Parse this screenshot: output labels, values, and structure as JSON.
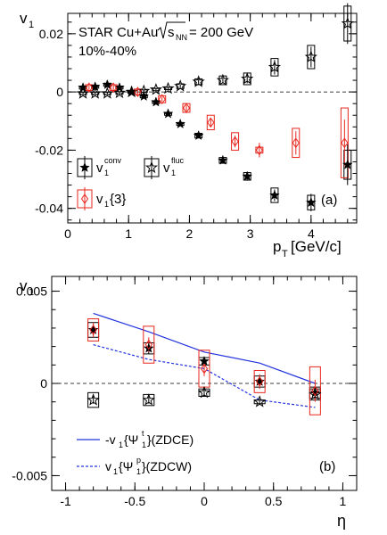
{
  "chart_data": [
    {
      "type": "scatter",
      "panel_label": "(a)",
      "annotations": [
        "STAR Cu+Au",
        "= 200 GeV",
        "10%-40%"
      ],
      "sqrt_label": "s",
      "sqrt_sub": "NN",
      "ylabel": "v",
      "ylabel_sub": "1",
      "xlabel": "p",
      "xlabel_sub": "T",
      "xlabel_unit": "[GeV/c]",
      "xlim": [
        0,
        4.75
      ],
      "ylim": [
        -0.045,
        0.027
      ],
      "xticks": [
        "0",
        "1",
        "2",
        "3",
        "4"
      ],
      "xtick_values": [
        0,
        1,
        2,
        3,
        4
      ],
      "yticks": [
        "-0.04",
        "-0.02",
        "0",
        "0.02"
      ],
      "ytick_values": [
        -0.04,
        -0.02,
        0,
        0.02
      ],
      "reference_line_y": 0,
      "legend": [
        {
          "key": "conv",
          "text": "v",
          "sub": "1",
          "sup": "conv",
          "marker": "star-filled",
          "color": "#000000"
        },
        {
          "key": "fluc",
          "text": "v",
          "sub": "1",
          "sup": "fluc",
          "marker": "star-open",
          "color": "#000000"
        },
        {
          "key": "v13",
          "text": "v",
          "sub": "1",
          "suffix": "{3}",
          "marker": "diamond-open",
          "color": "#e8251c"
        }
      ],
      "series": [
        {
          "key": "conv",
          "marker": "star-filled",
          "color": "#000000",
          "x": [
            0.25,
            0.45,
            0.65,
            0.85,
            1.05,
            1.25,
            1.45,
            1.65,
            1.85,
            2.15,
            2.55,
            2.95,
            3.4,
            4.0,
            4.6
          ],
          "y": [
            0.0015,
            0.0018,
            0.0025,
            0.0015,
            0.0,
            -0.0015,
            -0.0035,
            -0.0075,
            -0.011,
            -0.015,
            -0.0235,
            -0.029,
            -0.0355,
            -0.038,
            -0.025
          ],
          "err": [
            0.0005,
            0.0005,
            0.0005,
            0.0005,
            0.0005,
            0.0005,
            0.0005,
            0.0005,
            0.0005,
            0.0008,
            0.001,
            0.0015,
            0.002,
            0.003,
            0.007
          ],
          "sys": [
            0.0005,
            0.0005,
            0.0005,
            0.0005,
            0.0005,
            0.0005,
            0.0005,
            0.0005,
            0.0005,
            0.0008,
            0.001,
            0.0013,
            0.0025,
            0.0025,
            0.005
          ]
        },
        {
          "key": "fluc",
          "marker": "star-open",
          "color": "#000000",
          "x": [
            0.25,
            0.45,
            0.65,
            0.85,
            1.05,
            1.25,
            1.45,
            1.65,
            1.85,
            2.15,
            2.55,
            2.95,
            3.4,
            4.0,
            4.6
          ],
          "y": [
            -0.0005,
            -0.0005,
            -0.0005,
            -0.0003,
            0.0,
            0.0003,
            0.0008,
            0.0012,
            0.002,
            0.0035,
            0.004,
            0.0045,
            0.0085,
            0.012,
            0.0235
          ],
          "err": [
            0.0005,
            0.0005,
            0.0005,
            0.0005,
            0.0005,
            0.0005,
            0.0005,
            0.0005,
            0.0005,
            0.0008,
            0.001,
            0.0015,
            0.0025,
            0.0035,
            0.007
          ],
          "sys": [
            0.0004,
            0.0004,
            0.0004,
            0.0004,
            0.0004,
            0.0004,
            0.0004,
            0.0004,
            0.0008,
            0.001,
            0.0015,
            0.002,
            0.003,
            0.004,
            0.006
          ]
        },
        {
          "key": "v13",
          "marker": "diamond-open",
          "color": "#e8251c",
          "x": [
            0.35,
            0.75,
            1.15,
            1.55,
            1.95,
            2.35,
            2.75,
            3.15,
            3.75,
            4.55
          ],
          "y": [
            0.0015,
            0.0015,
            0.0,
            -0.0025,
            -0.0055,
            -0.0105,
            -0.017,
            -0.02,
            -0.0175,
            -0.0175
          ],
          "err": [
            0.0008,
            0.0008,
            0.0008,
            0.0008,
            0.001,
            0.0015,
            0.002,
            0.0025,
            0.004,
            0.008
          ],
          "sys": [
            0.001,
            0.001,
            0.001,
            0.0012,
            0.0015,
            0.0025,
            0.003,
            0.001,
            0.005,
            0.012
          ]
        }
      ]
    },
    {
      "type": "scatter",
      "panel_label": "(b)",
      "ylabel": "v",
      "ylabel_sub": "1",
      "xlabel": "η",
      "xlim": [
        -1.1,
        1.1
      ],
      "ylim": [
        -0.0058,
        0.0058
      ],
      "xticks": [
        "-1",
        "-0.5",
        "0",
        "0.5",
        "1"
      ],
      "xtick_values": [
        -1,
        -0.5,
        0,
        0.5,
        1
      ],
      "yticks": [
        "-0.005",
        "0",
        "0.005"
      ],
      "ytick_values": [
        -0.005,
        0,
        0.005
      ],
      "reference_line_y": 0,
      "legend": [
        {
          "key": "zdce",
          "prefix": "-v",
          "sub": "1",
          "mid": "{Ψ",
          "mid_sup": "t",
          "mid_sub": "1",
          "suffix": "}(ZDCE)",
          "style": "solid",
          "color": "#2233dd"
        },
        {
          "key": "zdcw",
          "prefix": "v",
          "sub": "1",
          "mid": "{Ψ",
          "mid_sup": "p",
          "mid_sub": "1",
          "suffix": "}(ZDCW)",
          "style": "dashed",
          "color": "#2233dd"
        }
      ],
      "lines": [
        {
          "key": "zdce",
          "style": "solid",
          "color": "#2233dd",
          "x": [
            -0.8,
            -0.4,
            0.0,
            0.4,
            0.8
          ],
          "y": [
            0.0038,
            0.0028,
            0.0017,
            0.0011,
            0.0
          ]
        },
        {
          "key": "zdcw",
          "style": "dashed",
          "color": "#2233dd",
          "x": [
            -0.8,
            -0.4,
            0.0,
            0.4,
            0.8
          ],
          "y": [
            0.0021,
            0.0013,
            0.0008,
            -0.0009,
            -0.0013
          ]
        }
      ],
      "series": [
        {
          "key": "conv",
          "marker": "star-filled",
          "color": "#000000",
          "x": [
            -0.8,
            -0.4,
            0.0,
            0.4,
            0.8
          ],
          "y": [
            0.0029,
            0.0019,
            0.0012,
            0.0001,
            -0.0005
          ],
          "err": [
            0.0003,
            0.0003,
            0.0002,
            0.0002,
            0.0003
          ],
          "sys": [
            0.0004,
            0.0003,
            0.0002,
            0.0003,
            0.0003
          ]
        },
        {
          "key": "fluc",
          "marker": "star-open",
          "color": "#000000",
          "x": [
            -0.8,
            -0.4,
            0.0,
            0.4,
            0.8
          ],
          "y": [
            -0.0009,
            -0.0009,
            -0.0005,
            -0.001,
            -0.0006
          ],
          "err": [
            0.0002,
            0.0002,
            0.0002,
            0.0001,
            0.0002
          ],
          "sys": [
            0.0004,
            0.0003,
            0.0002,
            0.0001,
            0.0003
          ]
        },
        {
          "key": "v13",
          "marker": "diamond-open",
          "color": "#e8251c",
          "x": [
            -0.8,
            -0.4,
            0.0,
            0.4,
            0.8
          ],
          "y": [
            0.0029,
            0.0021,
            0.0008,
            0.0001,
            -0.0004
          ],
          "err": [
            0.0004,
            0.0004,
            0.0004,
            0.0004,
            0.0006
          ],
          "sys": [
            0.0006,
            0.001,
            0.001,
            0.0006,
            0.0013
          ]
        }
      ]
    }
  ]
}
